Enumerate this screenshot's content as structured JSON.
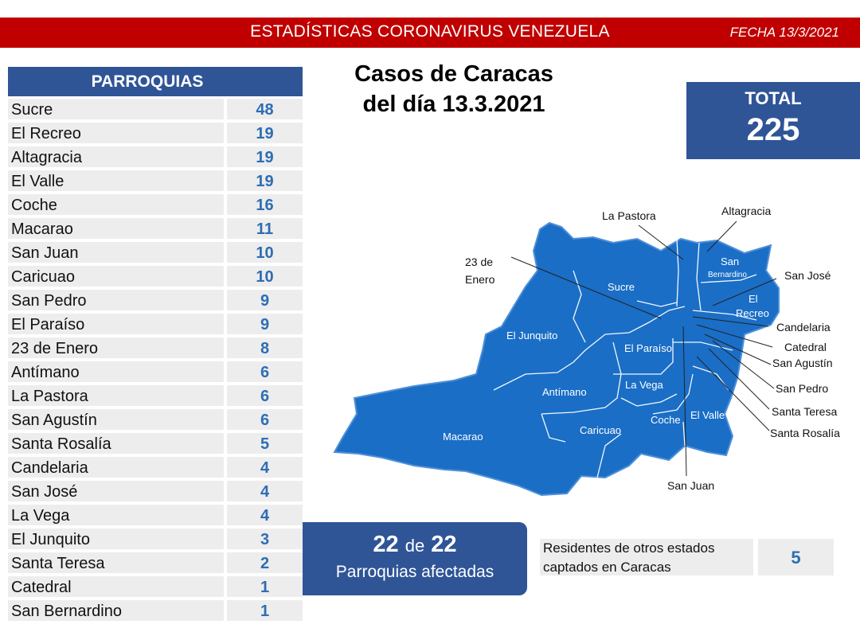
{
  "header": {
    "title": "ESTADÍSTICAS CORONAVIRUS VENEZUELA",
    "date": "FECHA 13/3/2021"
  },
  "table": {
    "title": "PARROQUIAS",
    "rows": [
      {
        "name": "Sucre",
        "value": "48"
      },
      {
        "name": "El Recreo",
        "value": "19"
      },
      {
        "name": "Altagracia",
        "value": "19"
      },
      {
        "name": "El Valle",
        "value": "19"
      },
      {
        "name": "Coche",
        "value": "16"
      },
      {
        "name": "Macarao",
        "value": "11"
      },
      {
        "name": "San Juan",
        "value": "10"
      },
      {
        "name": "Caricuao",
        "value": "10"
      },
      {
        "name": "San Pedro",
        "value": "9"
      },
      {
        "name": "El Paraíso",
        "value": "9"
      },
      {
        "name": "23 de Enero",
        "value": "8"
      },
      {
        "name": "Antímano",
        "value": "6"
      },
      {
        "name": "La Pastora",
        "value": "6"
      },
      {
        "name": "San Agustín",
        "value": "6"
      },
      {
        "name": "Santa Rosalía",
        "value": "5"
      },
      {
        "name": "Candelaria",
        "value": "4"
      },
      {
        "name": "San José",
        "value": "4"
      },
      {
        "name": "La Vega",
        "value": "4"
      },
      {
        "name": "El Junquito",
        "value": "3"
      },
      {
        "name": "Santa Teresa",
        "value": "2"
      },
      {
        "name": "Catedral",
        "value": "1"
      },
      {
        "name": "San Bernardino",
        "value": "1"
      }
    ]
  },
  "map_title": {
    "line1": "Casos de Caracas",
    "line2": "del día 13.3.2021"
  },
  "total": {
    "label": "TOTAL",
    "value": "225"
  },
  "map": {
    "fill_color": "#1a6ec6",
    "inner_labels": {
      "sucre": "Sucre",
      "el_junquito": "El Junquito",
      "el_paraiso": "El Paraíso",
      "antimano": "Antímano",
      "la_vega": "La Vega",
      "macarao": "Macarao",
      "caricuao": "Caricuao",
      "coche": "Coche",
      "el_valle": "El Valle",
      "san_bernardino_1": "San",
      "san_bernardino_2": "Bernardino",
      "el_recreo_1": "El",
      "el_recreo_2": "Recreo"
    },
    "callouts": {
      "la_pastora": "La Pastora",
      "altagracia": "Altagracia",
      "enero_1": "23 de",
      "enero_2": "Enero",
      "san_jose": "San José",
      "candelaria": "Candelaria",
      "catedral": "Catedral",
      "san_agustin": "San Agustín",
      "san_pedro": "San Pedro",
      "santa_teresa": "Santa Teresa",
      "santa_rosalia": "Santa Rosalía",
      "san_juan": "San Juan"
    }
  },
  "affected": {
    "count": "22",
    "of": "de",
    "total": "22",
    "label": "Parroquias afectadas"
  },
  "others": {
    "label_line1": "Residentes de otros estados",
    "label_line2": "captados en Caracas",
    "value": "5"
  }
}
